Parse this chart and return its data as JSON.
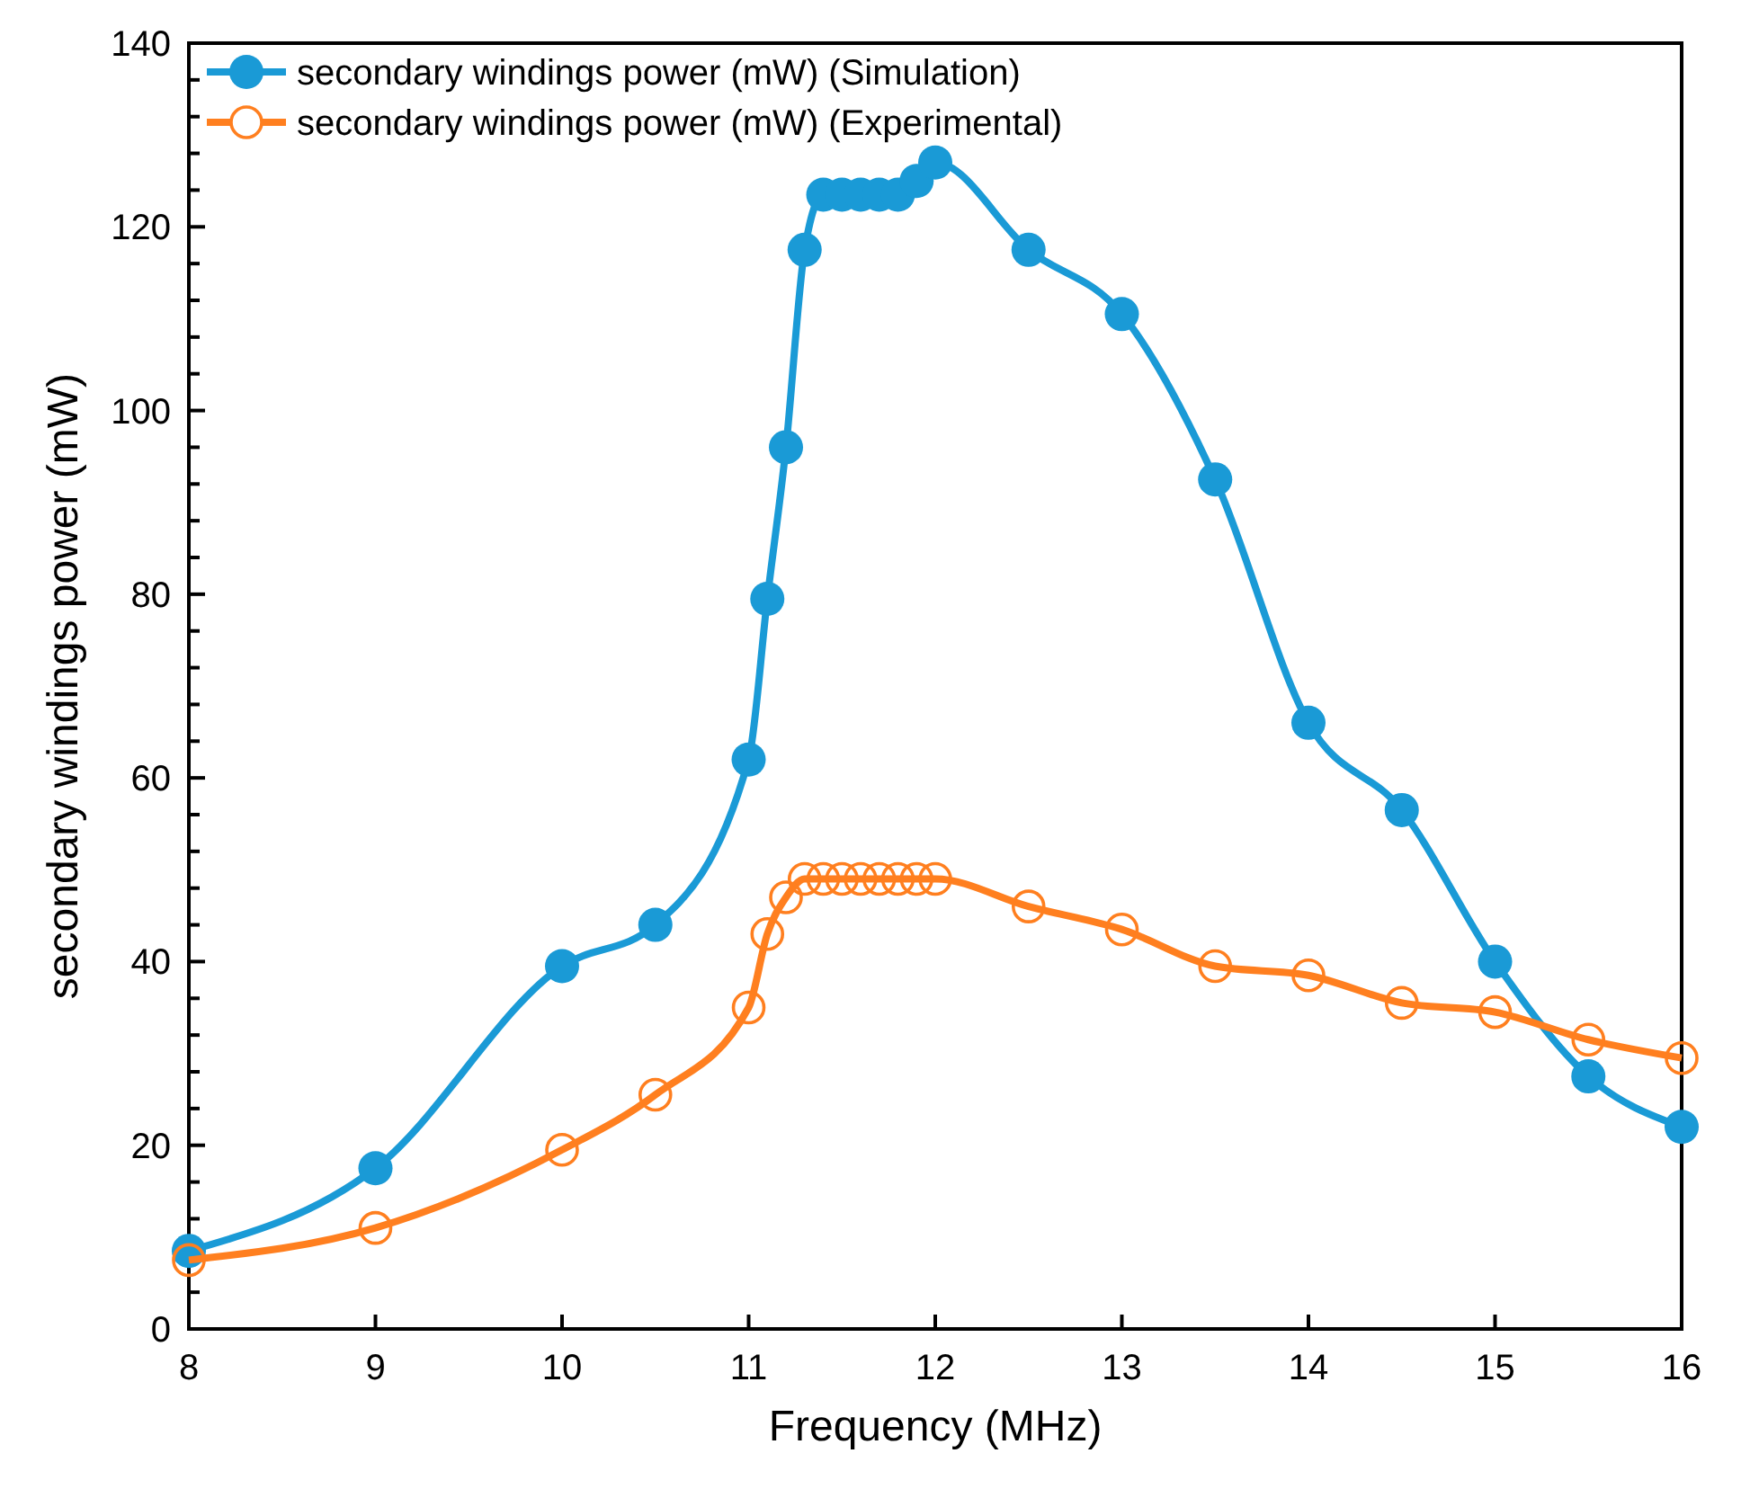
{
  "chart_data": {
    "type": "line",
    "xlabel": "Frequency (MHz)",
    "ylabel": "secondary windings power (mW)",
    "xlim": [
      8,
      16
    ],
    "xticks": [
      8,
      9,
      10,
      11,
      12,
      13,
      14,
      15,
      16
    ],
    "ylim": [
      0,
      140
    ],
    "yticks": [
      0,
      {
        "value": 4,
        "label": null
      },
      {
        "value": 8,
        "label": null
      },
      {
        "value": 12,
        "label": null
      },
      {
        "value": 16,
        "label": null
      },
      20,
      {
        "value": 24,
        "label": null
      },
      {
        "value": 28,
        "label": null
      },
      {
        "value": 32,
        "label": null
      },
      {
        "value": 36,
        "label": null
      },
      40,
      {
        "value": 44,
        "label": null
      },
      {
        "value": 48,
        "label": null
      },
      {
        "value": 52,
        "label": null
      },
      {
        "value": 56,
        "label": null
      },
      60,
      {
        "value": 64,
        "label": null
      },
      {
        "value": 68,
        "label": null
      },
      {
        "value": 72,
        "label": null
      },
      {
        "value": 76,
        "label": null
      },
      80,
      {
        "value": 84,
        "label": null
      },
      {
        "value": 88,
        "label": null
      },
      {
        "value": 92,
        "label": null
      },
      {
        "value": 96,
        "label": null
      },
      100,
      {
        "value": 104,
        "label": null
      },
      {
        "value": 108,
        "label": null
      },
      {
        "value": 112,
        "label": null
      },
      {
        "value": 116,
        "label": null
      },
      120,
      {
        "value": 124,
        "label": null
      },
      {
        "value": 128,
        "label": null
      },
      {
        "value": 132,
        "label": null
      },
      {
        "value": 136,
        "label": null
      },
      140
    ],
    "grid": false,
    "legend": "top left",
    "marker": "circle",
    "line_style": "solid",
    "series": [
      {
        "name": "secondary windings power (mW) (Simulation)",
        "color": "#1a9ad6",
        "x": [
          8,
          9,
          10,
          10.5,
          11,
          11.1,
          11.2,
          11.3,
          11.4,
          11.5,
          11.6,
          11.7,
          11.8,
          11.9,
          12,
          12.5,
          13,
          13.5,
          14,
          14.5,
          15,
          15.5,
          16
        ],
        "values": [
          8.5,
          17.5,
          39.5,
          44,
          62,
          79.5,
          96,
          117.5,
          123.5,
          123.5,
          123.5,
          123.5,
          123.5,
          125,
          127,
          117.5,
          110.5,
          92.5,
          66,
          56.5,
          40,
          27.5,
          22
        ]
      },
      {
        "name": "secondary windings power (mW) (Experimental)",
        "color": "#ff7f1f",
        "x": [
          8,
          9,
          10,
          10.5,
          11,
          11.1,
          11.2,
          11.3,
          11.4,
          11.5,
          11.6,
          11.7,
          11.8,
          11.9,
          12,
          12.5,
          13,
          13.5,
          14,
          14.5,
          15,
          15.5,
          16
        ],
        "values": [
          7.5,
          11,
          19.5,
          25.5,
          35,
          43,
          47,
          49,
          49,
          49,
          49,
          49,
          49,
          49,
          49,
          46,
          43.5,
          39.5,
          38.5,
          35.5,
          34.5,
          31.5,
          29.5
        ]
      }
    ]
  }
}
